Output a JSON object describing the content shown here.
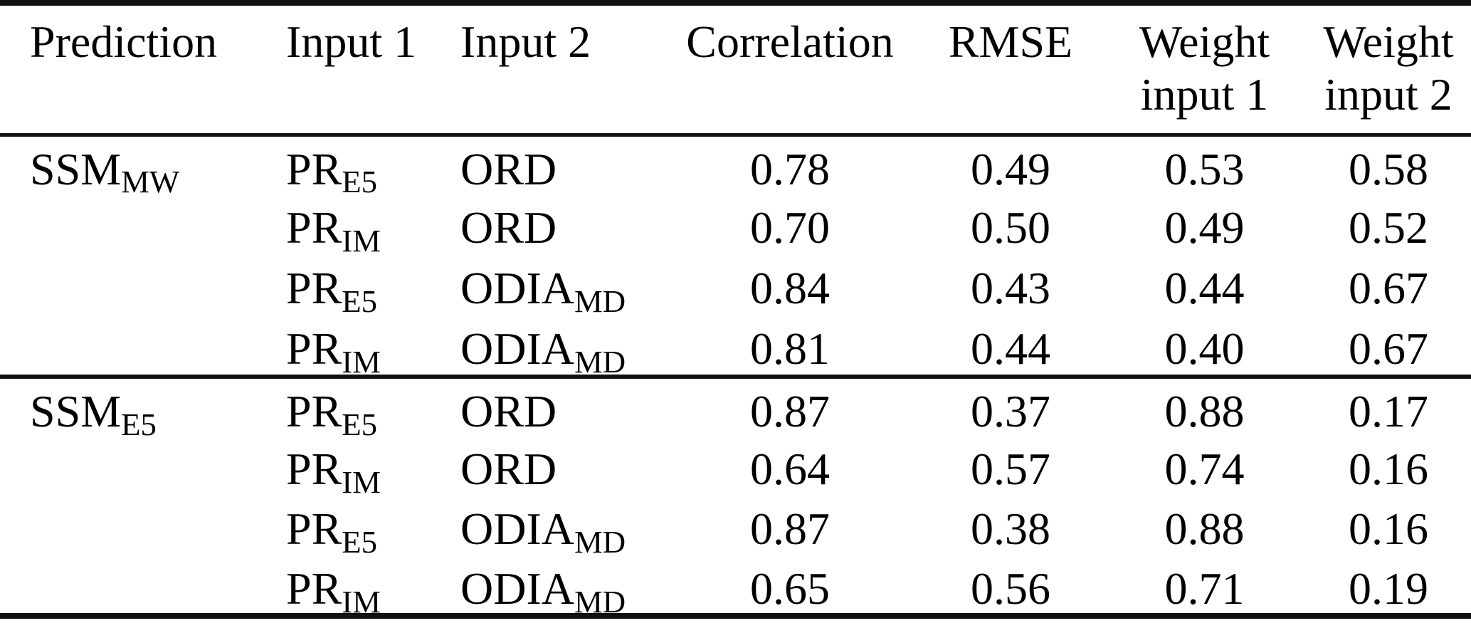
{
  "table": {
    "headers": [
      {
        "line1": "Prediction",
        "line2": ""
      },
      {
        "line1": "Input 1",
        "line2": ""
      },
      {
        "line1": "Input 2",
        "line2": ""
      },
      {
        "line1": "Correlation",
        "line2": ""
      },
      {
        "line1": "RMSE",
        "line2": ""
      },
      {
        "line1": "Weight",
        "line2": "input 1"
      },
      {
        "line1": "Weight",
        "line2": "input 2"
      }
    ],
    "groups": [
      {
        "prediction": {
          "base": "SSM",
          "sub": "MW"
        },
        "rows": [
          {
            "input1": {
              "base": "PR",
              "sub": "E5"
            },
            "input2": {
              "base": "ORD",
              "sub": ""
            },
            "correlation": "0.78",
            "rmse": "0.49",
            "weight1": "0.53",
            "weight2": "0.58"
          },
          {
            "input1": {
              "base": "PR",
              "sub": "IM"
            },
            "input2": {
              "base": "ORD",
              "sub": ""
            },
            "correlation": "0.70",
            "rmse": "0.50",
            "weight1": "0.49",
            "weight2": "0.52"
          },
          {
            "input1": {
              "base": "PR",
              "sub": "E5"
            },
            "input2": {
              "base": "ODIA",
              "sub": "MD"
            },
            "correlation": "0.84",
            "rmse": "0.43",
            "weight1": "0.44",
            "weight2": "0.67"
          },
          {
            "input1": {
              "base": "PR",
              "sub": "IM"
            },
            "input2": {
              "base": "ODIA",
              "sub": "MD"
            },
            "correlation": "0.81",
            "rmse": "0.44",
            "weight1": "0.40",
            "weight2": "0.67"
          }
        ]
      },
      {
        "prediction": {
          "base": "SSM",
          "sub": "E5"
        },
        "rows": [
          {
            "input1": {
              "base": "PR",
              "sub": "E5"
            },
            "input2": {
              "base": "ORD",
              "sub": ""
            },
            "correlation": "0.87",
            "rmse": "0.37",
            "weight1": "0.88",
            "weight2": "0.17"
          },
          {
            "input1": {
              "base": "PR",
              "sub": "IM"
            },
            "input2": {
              "base": "ORD",
              "sub": ""
            },
            "correlation": "0.64",
            "rmse": "0.57",
            "weight1": "0.74",
            "weight2": "0.16"
          },
          {
            "input1": {
              "base": "PR",
              "sub": "E5"
            },
            "input2": {
              "base": "ODIA",
              "sub": "MD"
            },
            "correlation": "0.87",
            "rmse": "0.38",
            "weight1": "0.88",
            "weight2": "0.16"
          },
          {
            "input1": {
              "base": "PR",
              "sub": "IM"
            },
            "input2": {
              "base": "ODIA",
              "sub": "MD"
            },
            "correlation": "0.65",
            "rmse": "0.56",
            "weight1": "0.71",
            "weight2": "0.19"
          }
        ]
      }
    ]
  },
  "colors": {
    "text": "#000000",
    "background": "#ffffff",
    "rule": "#111111"
  }
}
